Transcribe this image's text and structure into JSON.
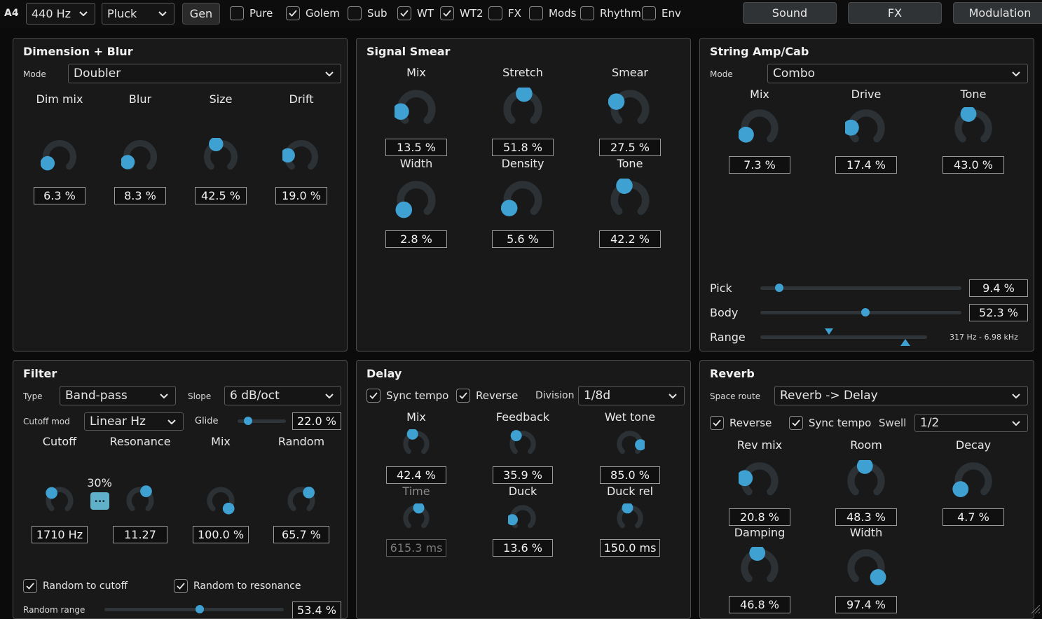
{
  "topbar": {
    "note": "A4",
    "tuning": "440 Hz",
    "preset": "Pluck",
    "gen": "Gen",
    "toggles": [
      {
        "label": "Pure",
        "checked": false
      },
      {
        "label": "Golem",
        "checked": true
      },
      {
        "label": "Sub",
        "checked": false
      },
      {
        "label": "WT",
        "checked": true
      },
      {
        "label": "WT2",
        "checked": true
      },
      {
        "label": "FX",
        "checked": false
      },
      {
        "label": "Mods",
        "checked": false
      },
      {
        "label": "Rhythm",
        "checked": false
      },
      {
        "label": "Env",
        "checked": false
      }
    ],
    "tabs": [
      "Sound",
      "FX",
      "Modulation"
    ]
  },
  "dimension": {
    "title": "Dimension + Blur",
    "mode_label": "Mode",
    "mode": "Doubler",
    "knobs": [
      {
        "label": "Dim mix",
        "value": "6.3 %",
        "frac": 0.063
      },
      {
        "label": "Blur",
        "value": "8.3 %",
        "frac": 0.083
      },
      {
        "label": "Size",
        "value": "42.5 %",
        "frac": 0.425
      },
      {
        "label": "Drift",
        "value": "19.0 %",
        "frac": 0.19
      }
    ]
  },
  "smear": {
    "title": "Signal Smear",
    "knobs": [
      {
        "label": "Mix",
        "value": "13.5 %",
        "frac": 0.135
      },
      {
        "label": "Stretch",
        "value": "51.8 %",
        "frac": 0.518
      },
      {
        "label": "Smear",
        "value": "27.5 %",
        "frac": 0.275
      },
      {
        "label": "Width",
        "value": "2.8 %",
        "frac": 0.028
      },
      {
        "label": "Density",
        "value": "5.6 %",
        "frac": 0.056
      },
      {
        "label": "Tone",
        "value": "42.2 %",
        "frac": 0.422
      }
    ]
  },
  "amp": {
    "title": "String Amp/Cab",
    "mode_label": "Mode",
    "mode": "Combo",
    "knobs": [
      {
        "label": "Mix",
        "value": "7.3 %",
        "frac": 0.073
      },
      {
        "label": "Drive",
        "value": "17.4 %",
        "frac": 0.174
      },
      {
        "label": "Tone",
        "value": "43.0 %",
        "frac": 0.43
      }
    ],
    "pick_label": "Pick",
    "pick": "9.4 %",
    "pick_frac": 0.094,
    "body_label": "Body",
    "body": "52.3 %",
    "body_frac": 0.523,
    "range_label": "Range",
    "range": "317 Hz - 6.98 kHz"
  },
  "filter": {
    "title": "Filter",
    "type_label": "Type",
    "type": "Band-pass",
    "slope_label": "Slope",
    "slope": "6 dB/oct",
    "cutoff_mod_label": "Cutoff mod",
    "cutoff_mod": "Linear Hz",
    "glide_label": "Glide",
    "glide": "22.0 %",
    "glide_frac": 0.22,
    "knobs": [
      {
        "label": "Cutoff",
        "value": "1710 Hz",
        "frac": 0.33
      },
      {
        "label": "Resonance",
        "value": "11.27",
        "frac": 0.62
      },
      {
        "label": "Mix",
        "value": "100.0 %",
        "frac": 1.0
      },
      {
        "label": "Random",
        "value": "65.7 %",
        "frac": 0.657
      }
    ],
    "mod_amount": "30%",
    "mod_button": "...",
    "random_to_cutoff": "Random to cutoff",
    "random_to_resonance": "Random to resonance",
    "random_range_label": "Random range",
    "random_range": "53.4 %"
  },
  "delay": {
    "title": "Delay",
    "sync_tempo": "Sync tempo",
    "reverse": "Reverse",
    "division_label": "Division",
    "division": "1/8d",
    "knobs": [
      {
        "label": "Mix",
        "value": "42.4 %",
        "frac": 0.424
      },
      {
        "label": "Feedback",
        "value": "35.9 %",
        "frac": 0.359
      },
      {
        "label": "Wet tone",
        "value": "85.0 %",
        "frac": 0.85
      },
      {
        "label": "Time",
        "value": "615.3 ms",
        "frac": 0.55
      },
      {
        "label": "Duck",
        "value": "13.6 %",
        "frac": 0.136
      },
      {
        "label": "Duck rel",
        "value": "150.0 ms",
        "frac": 0.45
      }
    ]
  },
  "reverb": {
    "title": "Reverb",
    "route_label": "Space route",
    "route": "Reverb -> Delay",
    "reverse": "Reverse",
    "sync_tempo": "Sync tempo",
    "swell_label": "Swell",
    "swell": "1/2",
    "knobs": [
      {
        "label": "Rev mix",
        "value": "20.8 %",
        "frac": 0.208
      },
      {
        "label": "Room",
        "value": "48.3 %",
        "frac": 0.483
      },
      {
        "label": "Decay",
        "value": "4.7 %",
        "frac": 0.047
      },
      {
        "label": "Damping",
        "value": "46.8 %",
        "frac": 0.468
      },
      {
        "label": "Width",
        "value": "97.4 %",
        "frac": 0.974
      }
    ]
  },
  "colors": {
    "accent": "#3fa0d2",
    "track": "#2e3438",
    "panel": "#191919"
  }
}
